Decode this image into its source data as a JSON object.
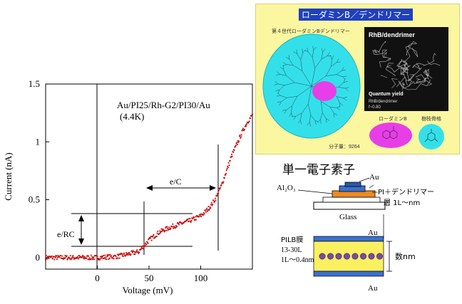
{
  "chart_data": {
    "type": "scatter",
    "xlabel": "Voltage  (mV)",
    "ylabel": "Current (nA)",
    "xlim": [
      -50,
      150
    ],
    "ylim": [
      -0.1,
      1.5
    ],
    "x_ticks": [
      0,
      50,
      100
    ],
    "y_ticks": [
      0,
      0.5,
      1,
      1.5
    ],
    "x_tick_labels": [
      "0",
      "50",
      "100"
    ],
    "y_tick_labels": [
      "0",
      "0.5",
      "1",
      "1.5"
    ],
    "grid": false,
    "legend": "none",
    "series_color": "#cc0000",
    "curve": [
      [
        -50,
        0
      ],
      [
        -20,
        0
      ],
      [
        0,
        0
      ],
      [
        20,
        0.01
      ],
      [
        40,
        0.05
      ],
      [
        50,
        0.15
      ],
      [
        60,
        0.22
      ],
      [
        70,
        0.26
      ],
      [
        80,
        0.29
      ],
      [
        90,
        0.32
      ],
      [
        100,
        0.36
      ],
      [
        105,
        0.4
      ],
      [
        110,
        0.45
      ],
      [
        115,
        0.52
      ],
      [
        120,
        0.62
      ],
      [
        125,
        0.75
      ],
      [
        130,
        0.88
      ],
      [
        135,
        0.98
      ],
      [
        140,
        1.08
      ],
      [
        145,
        1.17
      ],
      [
        150,
        1.23
      ]
    ],
    "annotation_title": "Au/PI25/Rh-G2/PI30/Au",
    "annotation_temp": "(4.4K)",
    "annotation_ec": "e/C",
    "annotation_erc": "e/RC"
  },
  "poster": {
    "title": "ローダミンB／デンドリマー",
    "subtitle": "第４世代ローダミンBデンドリマー",
    "photo_label": "RhB/dendrimer",
    "quantum_yield": "Quantum yield",
    "qy_value1": "RhB/dendrimer",
    "qy_value2": "f~0.80",
    "rhb_label": "ローダミンB",
    "core_label": "樹枝骨格",
    "mw_label": "分子量：",
    "mw_value": "9264"
  },
  "device": {
    "title": "単一電子素子",
    "al2o3": "Al₂O₃",
    "au_top": "Au",
    "pi_label": "PI＋デンドリマー",
    "layer_label": "層 1L～nm",
    "glass": "Glass",
    "au_mid": "Au",
    "pilb_label": "PILB膜",
    "pilb_range": "13-30L",
    "pilb_thick": "1L～0.4nm",
    "thickness": "数nm",
    "au_bottom": "Au"
  }
}
